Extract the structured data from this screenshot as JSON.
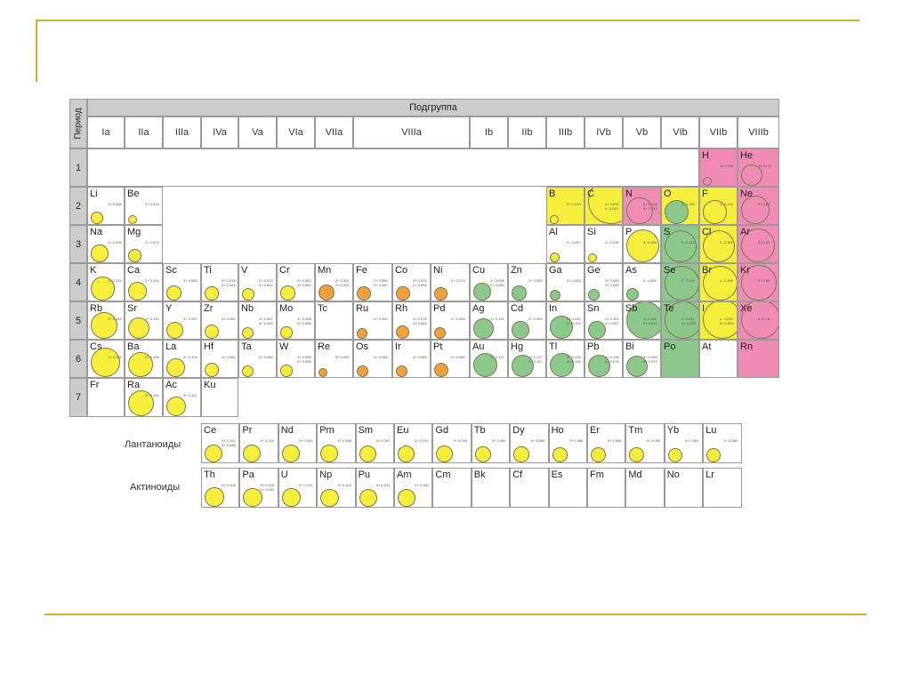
{
  "table_header": {
    "podgruppa": "Подгруппа",
    "period_label": "Период",
    "groups": [
      "Ia",
      "IIa",
      "IIIa",
      "IVa",
      "Va",
      "VIa",
      "VIIa",
      "VIIIa",
      "Ib",
      "IIb",
      "IIIb",
      "IVb",
      "Vb",
      "VIb",
      "VIIb",
      "VIIIb"
    ]
  },
  "periods": [
    "1",
    "2",
    "3",
    "4",
    "5",
    "6",
    "7"
  ],
  "colors": {
    "yellow": "#f5ee3c",
    "orange": "#f0a03c",
    "green": "#8cc88c",
    "pink": "#f08cb4",
    "header_grey": "#cccccc"
  },
  "elements": [
    {
      "sym": "H",
      "info": [
        "1s 0.046"
      ],
      "color": "pink"
    },
    {
      "sym": "He",
      "info": [
        "1s 0.122"
      ],
      "color": "pink"
    },
    {
      "sym": "Li",
      "info": [
        "1+ 0.068"
      ],
      "color": "yellow"
    },
    {
      "sym": "Be",
      "info": [
        "2+ 0.034"
      ],
      "color": "yellow"
    },
    {
      "sym": "B",
      "info": [
        "3+ 0.020"
      ],
      "color": "yellow"
    },
    {
      "sym": "C",
      "info": [
        "4+ 0.020",
        "4- 0.260"
      ],
      "color": "yellow"
    },
    {
      "sym": "N",
      "info": [
        "3+ 0.148",
        "5+ 0.015"
      ],
      "color": "pink"
    },
    {
      "sym": "O",
      "info": [
        "2- 0.136"
      ],
      "color": "green"
    },
    {
      "sym": "F",
      "info": [
        "1- 0.133"
      ],
      "color": "yellow"
    },
    {
      "sym": "Ne",
      "info": [
        "0 0.160"
      ],
      "color": "pink"
    },
    {
      "sym": "Na",
      "info": [
        "1+ 0.098"
      ],
      "color": "yellow"
    },
    {
      "sym": "Mg",
      "info": [
        "2+ 0.074"
      ],
      "color": "yellow"
    },
    {
      "sym": "Al",
      "info": [
        "3+ 0.057"
      ],
      "color": "yellow"
    },
    {
      "sym": "Si",
      "info": [
        "4+ 0.039"
      ],
      "color": "yellow"
    },
    {
      "sym": "P",
      "info": [
        "3- 0.186"
      ],
      "color": "yellow"
    },
    {
      "sym": "S",
      "info": [
        "2- 0.182"
      ],
      "color": "green"
    },
    {
      "sym": "Cl",
      "info": [
        "1- 0.181"
      ],
      "color": "yellow"
    },
    {
      "sym": "Ar",
      "info": [
        "0 0.192"
      ],
      "color": "pink"
    },
    {
      "sym": "K",
      "info": [
        "1+ 0.133"
      ],
      "color": "yellow"
    },
    {
      "sym": "Ca",
      "info": [
        "2+ 0.104"
      ],
      "color": "yellow"
    },
    {
      "sym": "Sc",
      "info": [
        "3+ 0.083"
      ],
      "color": "yellow"
    },
    {
      "sym": "Ti",
      "info": [
        "2+ 0.078",
        "4+ 0.064"
      ],
      "color": "yellow"
    },
    {
      "sym": "V",
      "info": [
        "2+ 0.072",
        "4+ 0.061"
      ],
      "color": "yellow"
    },
    {
      "sym": "Cr",
      "info": [
        "2+ 0.083",
        "3+ 0.064"
      ],
      "color": "yellow"
    },
    {
      "sym": "Mn",
      "info": [
        "2+ 0.091",
        "4+ 0.052"
      ],
      "color": "orange"
    },
    {
      "sym": "Fe",
      "info": [
        "2+ 0.080",
        "3+ 0.067"
      ],
      "color": "orange"
    },
    {
      "sym": "Co",
      "info": [
        "2+ 0.078",
        "3+ 0.064"
      ],
      "color": "orange"
    },
    {
      "sym": "Ni",
      "info": [
        "2+ 0.074"
      ],
      "color": "orange"
    },
    {
      "sym": "Cu",
      "info": [
        "1+ 0.098",
        "2+ 0.080"
      ],
      "color": "green"
    },
    {
      "sym": "Zn",
      "info": [
        "2+ 0.083"
      ],
      "color": "green"
    },
    {
      "sym": "Ga",
      "info": [
        "3+ 0.062"
      ],
      "color": "green"
    },
    {
      "sym": "Ge",
      "info": [
        "2+ 0.065",
        "4+ 0.044"
      ],
      "color": "green"
    },
    {
      "sym": "As",
      "info": [
        "3- 0.069"
      ],
      "color": "green"
    },
    {
      "sym": "Se",
      "info": [
        "2- 0.193"
      ],
      "color": "green"
    },
    {
      "sym": "Br",
      "info": [
        "1- 0.196"
      ],
      "color": "yellow"
    },
    {
      "sym": "Kr",
      "info": [
        "0 0.198"
      ],
      "color": "pink"
    },
    {
      "sym": "Rb",
      "info": [
        "1+ 0.149"
      ],
      "color": "yellow"
    },
    {
      "sym": "Sr",
      "info": [
        "2+ 0.120"
      ],
      "color": "yellow"
    },
    {
      "sym": "Y",
      "info": [
        "3+ 0.097"
      ],
      "color": "yellow"
    },
    {
      "sym": "Zr",
      "info": [
        "4+ 0.082"
      ],
      "color": "yellow"
    },
    {
      "sym": "Nb",
      "info": [
        "4+ 0.067",
        "5+ 0.066"
      ],
      "color": "yellow"
    },
    {
      "sym": "Mo",
      "info": [
        "4+ 0.068",
        "6+ 0.065"
      ],
      "color": "yellow"
    },
    {
      "sym": "Tc",
      "info": [],
      "color": "none"
    },
    {
      "sym": "Ru",
      "info": [
        "4+ 0.062"
      ],
      "color": "orange"
    },
    {
      "sym": "Rh",
      "info": [
        "3+ 0.075",
        "4+ 0.065"
      ],
      "color": "orange"
    },
    {
      "sym": "Pd",
      "info": [
        "2+ 0.064"
      ],
      "color": "orange"
    },
    {
      "sym": "Ag",
      "info": [
        "1+ 0.113"
      ],
      "color": "green"
    },
    {
      "sym": "Cd",
      "info": [
        "2+ 0.099"
      ],
      "color": "green"
    },
    {
      "sym": "In",
      "info": [
        "3+ 0.092",
        "1+ 0.130"
      ],
      "color": "green"
    },
    {
      "sym": "Sn",
      "info": [
        "2+ 0.102",
        "4+ 0.067"
      ],
      "color": "green"
    },
    {
      "sym": "Sb",
      "info": [
        "3- 0.208",
        "5+ 0.062"
      ],
      "color": "green"
    },
    {
      "sym": "Te",
      "info": [
        "2- 0.211",
        "4+ 0.089"
      ],
      "color": "green"
    },
    {
      "sym": "I",
      "info": [
        "1- 0.220",
        "5+ 0.094"
      ],
      "color": "yellow"
    },
    {
      "sym": "Xe",
      "info": [
        "0 0.218"
      ],
      "color": "pink"
    },
    {
      "sym": "Cs",
      "info": [
        "1+ 0.165"
      ],
      "color": "yellow"
    },
    {
      "sym": "Ba",
      "info": [
        "2+ 0.138"
      ],
      "color": "yellow"
    },
    {
      "sym": "La",
      "info": [
        "3+ 0.104"
      ],
      "color": "yellow"
    },
    {
      "sym": "Hf",
      "info": [
        "4+ 0.082"
      ],
      "color": "yellow"
    },
    {
      "sym": "Ta",
      "info": [
        "5+ 0.066"
      ],
      "color": "yellow"
    },
    {
      "sym": "W",
      "info": [
        "4+ 0.068",
        "6+ 0.065"
      ],
      "color": "yellow"
    },
    {
      "sym": "Re",
      "info": [
        "6+ 0.052"
      ],
      "color": "orange"
    },
    {
      "sym": "Os",
      "info": [
        "4+ 0.065"
      ],
      "color": "orange"
    },
    {
      "sym": "Ir",
      "info": [
        "4+ 0.065"
      ],
      "color": "orange"
    },
    {
      "sym": "Pt",
      "info": [
        "2+ 0.080"
      ],
      "color": "orange"
    },
    {
      "sym": "Au",
      "info": [
        "1+ 0.137"
      ],
      "color": "green"
    },
    {
      "sym": "Hg",
      "info": [
        "1+ 0.127",
        "2+ 0.112"
      ],
      "color": "green"
    },
    {
      "sym": "Tl",
      "info": [
        "1+ 0.136",
        "3+ 0.105"
      ],
      "color": "green"
    },
    {
      "sym": "Pb",
      "info": [
        "2+ 0.126",
        "4+ 0.076"
      ],
      "color": "green"
    },
    {
      "sym": "Bi",
      "info": [
        "3+ 0.120",
        "5+ 0.074"
      ],
      "color": "green"
    },
    {
      "sym": "Po",
      "info": [],
      "color": "green"
    },
    {
      "sym": "At",
      "info": [],
      "color": "none"
    },
    {
      "sym": "Rn",
      "info": [],
      "color": "pink"
    },
    {
      "sym": "Fr",
      "info": [],
      "color": "none"
    },
    {
      "sym": "Ra",
      "info": [
        "2+ 0.144"
      ],
      "color": "yellow"
    },
    {
      "sym": "Ac",
      "info": [
        "3+ 0.111"
      ],
      "color": "yellow"
    },
    {
      "sym": "Ku",
      "info": [],
      "color": "none"
    }
  ],
  "lanthanides": {
    "label": "Лантаноиды",
    "items": [
      {
        "sym": "Ce",
        "info": [
          "3+ 0.102",
          "4+ 0.088"
        ],
        "color": "yellow"
      },
      {
        "sym": "Pr",
        "info": [
          "3+ 0.100"
        ],
        "color": "yellow"
      },
      {
        "sym": "Nd",
        "info": [
          "3+ 0.099"
        ],
        "color": "yellow"
      },
      {
        "sym": "Pm",
        "info": [
          "3+ 0.098"
        ],
        "color": "yellow"
      },
      {
        "sym": "Sm",
        "info": [
          "3+ 0.097"
        ],
        "color": "yellow"
      },
      {
        "sym": "Eu",
        "info": [
          "3+ 0.097"
        ],
        "color": "yellow"
      },
      {
        "sym": "Gd",
        "info": [
          "3+ 0.094"
        ],
        "color": "yellow"
      },
      {
        "sym": "Tb",
        "info": [
          "3+ 0.089"
        ],
        "color": "yellow"
      },
      {
        "sym": "Dy",
        "info": [
          "3+ 0.088"
        ],
        "color": "yellow"
      },
      {
        "sym": "Ho",
        "info": [
          "3+ 0.086"
        ],
        "color": "yellow"
      },
      {
        "sym": "Er",
        "info": [
          "3+ 0.085"
        ],
        "color": "yellow"
      },
      {
        "sym": "Tm",
        "info": [
          "3+ 0.085"
        ],
        "color": "yellow"
      },
      {
        "sym": "Yb",
        "info": [
          "3+ 0.081"
        ],
        "color": "yellow"
      },
      {
        "sym": "Lu",
        "info": [
          "3+ 0.080"
        ],
        "color": "yellow"
      }
    ]
  },
  "actinides": {
    "label": "Актиноиды",
    "items": [
      {
        "sym": "Th",
        "info": [
          "3+ 0.108"
        ],
        "color": "yellow"
      },
      {
        "sym": "Pa",
        "info": [
          "3+ 0.106",
          "4+ 0.091"
        ],
        "color": "yellow"
      },
      {
        "sym": "U",
        "info": [
          "3+ 0.104"
        ],
        "color": "yellow"
      },
      {
        "sym": "Np",
        "info": [
          "3+ 0.102"
        ],
        "color": "yellow"
      },
      {
        "sym": "Pu",
        "info": [
          "3+ 0.101"
        ],
        "color": "yellow"
      },
      {
        "sym": "Am",
        "info": [
          "3+ 0.100"
        ],
        "color": "yellow"
      },
      {
        "sym": "Cm",
        "info": [],
        "color": "none"
      },
      {
        "sym": "Bk",
        "info": [],
        "color": "none"
      },
      {
        "sym": "Cf",
        "info": [],
        "color": "none"
      },
      {
        "sym": "Es",
        "info": [],
        "color": "none"
      },
      {
        "sym": "Fm",
        "info": [],
        "color": "none"
      },
      {
        "sym": "Md",
        "info": [],
        "color": "none"
      },
      {
        "sym": "No",
        "info": [],
        "color": "none"
      },
      {
        "sym": "Lr",
        "info": [],
        "color": "none"
      }
    ]
  }
}
